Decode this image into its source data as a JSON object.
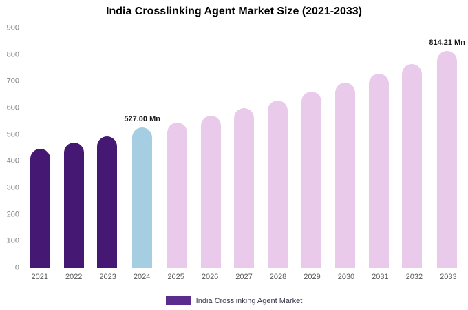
{
  "legend": {
    "label": "India Crosslinking Agent Market",
    "color": "#5B2B8E"
  },
  "colors": {
    "dark_purple": "#451874",
    "highlight_blue": "#A6CEE3",
    "light_plum": "#E9CAEB",
    "axis_line": "#cccccc",
    "tick_text": "#808080"
  },
  "chart_data": {
    "type": "bar",
    "title": "India Crosslinking Agent Market Size (2021-2033)",
    "categories": [
      "2021",
      "2022",
      "2023",
      "2024",
      "2025",
      "2026",
      "2027",
      "2028",
      "2029",
      "2030",
      "2031",
      "2032",
      "2033"
    ],
    "values": [
      447,
      470,
      494,
      527,
      545,
      571,
      600,
      629,
      661,
      695,
      730,
      766,
      814.21
    ],
    "bar_labels": [
      "",
      "",
      "",
      "527.00 Mn",
      "",
      "",
      "",
      "",
      "",
      "",
      "",
      "",
      "814.21 Mn"
    ],
    "bar_colors": [
      "#451874",
      "#451874",
      "#451874",
      "#A6CEE3",
      "#E9CAEB",
      "#E9CAEB",
      "#E9CAEB",
      "#E9CAEB",
      "#E9CAEB",
      "#E9CAEB",
      "#E9CAEB",
      "#E9CAEB",
      "#E9CAEB"
    ],
    "xlabel": "",
    "ylabel": "",
    "ylim": [
      0,
      900
    ],
    "yticks": [
      0,
      100,
      200,
      300,
      400,
      500,
      600,
      700,
      800,
      900
    ],
    "grid": false,
    "legend_position": "bottom"
  }
}
